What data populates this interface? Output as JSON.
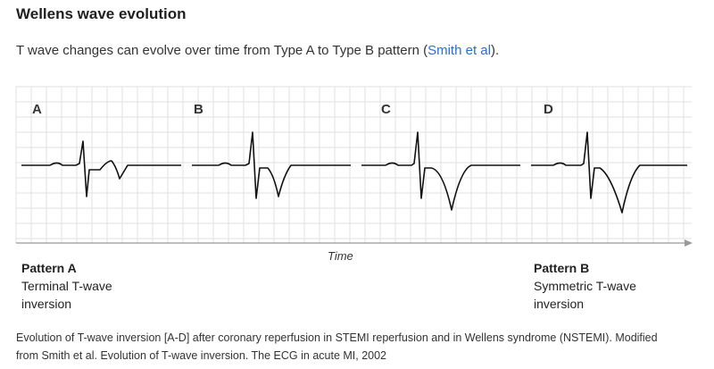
{
  "title": "Wellens wave evolution",
  "intro": {
    "text_before": "T wave changes can evolve over time from Type A to Type B pattern (",
    "link": "Smith et al",
    "text_after": ")."
  },
  "figure": {
    "panel_labels": [
      "A",
      "B",
      "C",
      "D"
    ],
    "axis_label": "Time",
    "pattern_a": {
      "name": "Pattern A",
      "desc_line1": "Terminal T-wave",
      "desc_line2": "inversion"
    },
    "pattern_b": {
      "name": "Pattern B",
      "desc_line1": "Symmetric T-wave",
      "desc_line2": "inversion"
    },
    "grid_color": "#e2e2e2",
    "trace_color": "#111111"
  },
  "caption": {
    "line1": "Evolution of T-wave inversion [A-D] after coronary reperfusion in STEMI reperfusion and in Wellens syndrome (NSTEMI). Modified",
    "line2": "from Smith et al. Evolution of T-wave inversion. The ECG in acute MI, 2002"
  }
}
